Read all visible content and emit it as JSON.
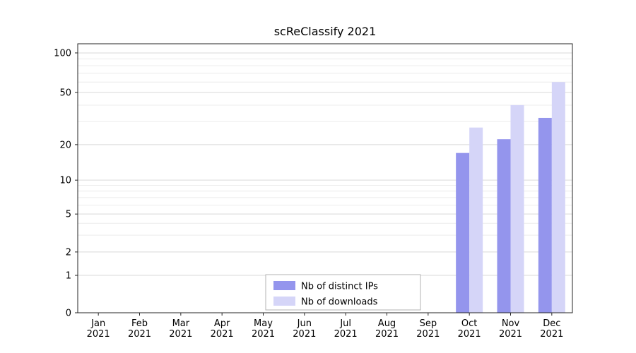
{
  "chart_data": {
    "type": "bar",
    "title": "scReClassify 2021",
    "scale": "symlog",
    "grid": true,
    "legend_position": "lower center inside",
    "categories": [
      {
        "month": "Jan",
        "year": "2021"
      },
      {
        "month": "Feb",
        "year": "2021"
      },
      {
        "month": "Mar",
        "year": "2021"
      },
      {
        "month": "Apr",
        "year": "2021"
      },
      {
        "month": "May",
        "year": "2021"
      },
      {
        "month": "Jun",
        "year": "2021"
      },
      {
        "month": "Jul",
        "year": "2021"
      },
      {
        "month": "Aug",
        "year": "2021"
      },
      {
        "month": "Sep",
        "year": "2021"
      },
      {
        "month": "Oct",
        "year": "2021"
      },
      {
        "month": "Nov",
        "year": "2021"
      },
      {
        "month": "Dec",
        "year": "2021"
      }
    ],
    "series": [
      {
        "name": "Nb of distinct IPs",
        "color": "#9495ed",
        "values": [
          null,
          null,
          null,
          null,
          null,
          null,
          null,
          null,
          null,
          17,
          22,
          32
        ]
      },
      {
        "name": "Nb of downloads",
        "color": "#d5d5f8",
        "values": [
          null,
          null,
          null,
          null,
          null,
          null,
          null,
          null,
          null,
          27,
          40,
          60
        ]
      }
    ],
    "yticks": [
      0,
      1,
      2,
      5,
      10,
      20,
      50,
      100
    ],
    "minor_gridlines": [
      3,
      4,
      6,
      7,
      8,
      9,
      30,
      40,
      60,
      70,
      80,
      90
    ],
    "ylim": [
      0,
      100
    ],
    "xlabel": "",
    "ylabel": "",
    "colors": {
      "axis": "#262626",
      "major_grid": "#d9d9d9",
      "minor_grid": "#ececec",
      "legend_border": "#b3b3b3",
      "text": "#000000"
    }
  }
}
